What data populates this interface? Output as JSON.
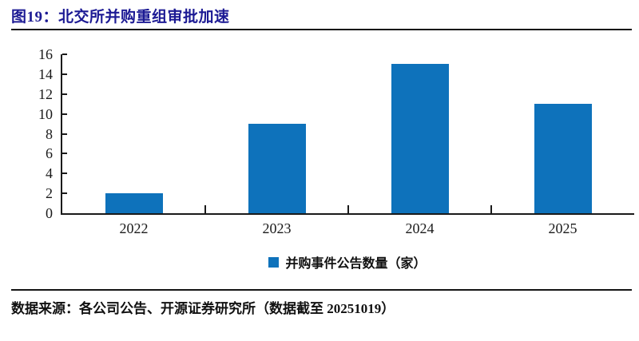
{
  "header": {
    "title": "图19：北交所并购重组审批加速"
  },
  "chart_data": {
    "type": "bar",
    "title": "图19：北交所并购重组审批加速",
    "categories": [
      "2022",
      "2023",
      "2024",
      "2025"
    ],
    "series": [
      {
        "name": "并购事件公告数量（家）",
        "values": [
          2,
          9,
          15,
          11
        ]
      }
    ],
    "xlabel": "",
    "ylabel": "",
    "ylim": [
      0,
      16
    ],
    "yticks": [
      0,
      2,
      4,
      6,
      8,
      10,
      12,
      14,
      16
    ],
    "grid": false,
    "legend_position": "bottom",
    "bar_color": "#0e72bb"
  },
  "legend": {
    "label": "并购事件公告数量（家）",
    "swatch_color": "#0e72bb"
  },
  "footer": {
    "source": "数据来源：各公司公告、开源证券研究所（数据截至 20251019）"
  },
  "colors": {
    "title_navy": "#1c1a94",
    "bar_blue": "#0e72bb",
    "axis_black": "#1a1a1a"
  }
}
